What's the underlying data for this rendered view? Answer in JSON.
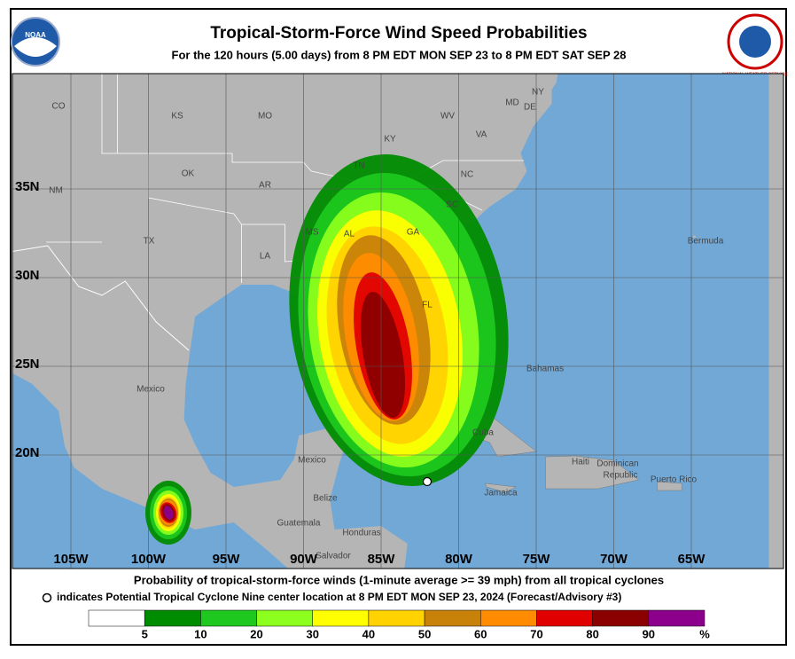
{
  "header": {
    "title": "Tropical-Storm-Force Wind Speed Probabilities",
    "subtitle": "For the 120 hours (5.00 days) from 8 PM EDT MON SEP 23 to 8 PM EDT SAT SEP 28",
    "left_logo": "NOAA",
    "right_logo": "NATIONAL WEATHER SERVICE"
  },
  "map": {
    "lon_labels": [
      "105W",
      "100W",
      "95W",
      "90W",
      "85W",
      "80W",
      "75W",
      "70W",
      "65W"
    ],
    "lat_labels": [
      "35N",
      "30N",
      "25N",
      "20N"
    ],
    "place_labels": [
      "CO",
      "KS",
      "MO",
      "KY",
      "WV",
      "VA",
      "NY",
      "MD",
      "DE",
      "TN",
      "NC",
      "NM",
      "OK",
      "AR",
      "SC",
      "TX",
      "MS",
      "AL",
      "GA",
      "LA",
      "FL",
      "Mexico",
      "Bahamas",
      "Cuba",
      "Mexico",
      "Belize",
      "Guatemala",
      "Honduras",
      "Salvador",
      "Haiti",
      "Dominican",
      "Republic",
      "Jamaica",
      "Puerto Rico",
      "Bermuda"
    ]
  },
  "footer": {
    "line1": "Probability of tropical-storm-force winds (1-minute average >= 39 mph) from all tropical cyclones",
    "line2": "indicates Potential Tropical Cyclone Nine center location at 8 PM EDT MON SEP 23, 2024 (Forecast/Advisory #3)"
  },
  "legend": {
    "thresholds": [
      5,
      10,
      20,
      30,
      40,
      50,
      60,
      70,
      80,
      90
    ],
    "colors": [
      "#ffffff",
      "#008c00",
      "#1ec81e",
      "#8cff1e",
      "#ffff00",
      "#ffd200",
      "#c8820a",
      "#ff8c00",
      "#e00000",
      "#8b0000",
      "#8c008c"
    ],
    "unit": "%"
  }
}
